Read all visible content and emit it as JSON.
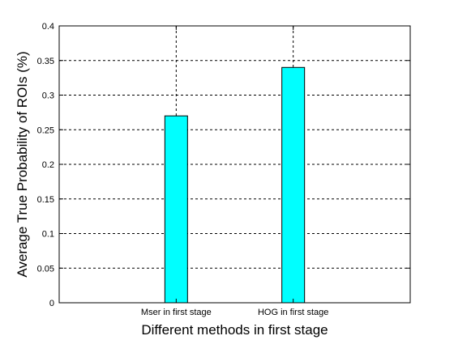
{
  "chart_data": {
    "type": "bar",
    "categories": [
      "Mser in first stage",
      "HOG in first stage"
    ],
    "values": [
      0.27,
      0.34
    ],
    "title": "",
    "xlabel": "Different methods in first stage",
    "ylabel": "Average True Probability of ROIs (%)",
    "ylim": [
      0,
      0.4
    ],
    "yticks": [
      "0",
      "0.05",
      "0.1",
      "0.15",
      "0.2",
      "0.25",
      "0.3",
      "0.35",
      "0.4"
    ],
    "grid": true,
    "bar_color": "#00ffff"
  }
}
